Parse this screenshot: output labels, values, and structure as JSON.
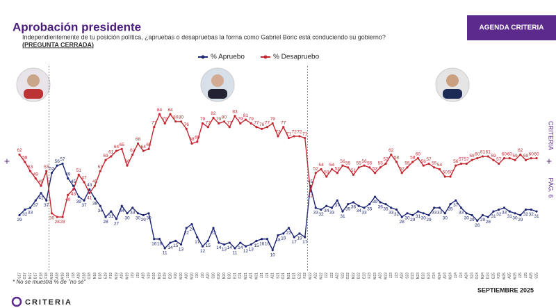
{
  "chart_data": {
    "type": "line",
    "title": "Aprobación presidente",
    "subtitle": "Independientemente de tu posición política, ¿apruebas o desapruebas la forma como Gabriel Boric está conduciendo su gobierno?",
    "subtitle_note": "(PREGUNTA CERRADA)",
    "categories": [
      "S17",
      "O17",
      "N17",
      "D17",
      "E18",
      "F18",
      "M18",
      "A18",
      "M18",
      "J18",
      "J18",
      "A18",
      "S18",
      "O18",
      "N18",
      "D18",
      "E19",
      "F19",
      "M19",
      "A19",
      "M19",
      "J19",
      "J19",
      "A19",
      "S19",
      "O19",
      "N19",
      "D19",
      "E20",
      "F20",
      "M20",
      "A20",
      "M20",
      "J20",
      "J20",
      "A20",
      "S20",
      "O20",
      "N20",
      "D20",
      "E21",
      "F21",
      "M21",
      "A21",
      "M21",
      "J21",
      "J21",
      "A21",
      "S21",
      "O21",
      "N21",
      "D21",
      "E22",
      "F22",
      "M22",
      "A22",
      "M22",
      "J22",
      "J22",
      "A22",
      "S22",
      "O22",
      "N22",
      "D22",
      "E23",
      "F23",
      "M23",
      "A23",
      "M23",
      "J23",
      "J23",
      "A23",
      "S23",
      "O23",
      "N23",
      "D23",
      "E24",
      "F24",
      "M24",
      "A24",
      "M24",
      "J24",
      "J24",
      "A24",
      "S24",
      "O24",
      "N24",
      "D24",
      "E25",
      "F25",
      "M25",
      "A25",
      "M25",
      "J25",
      "J25",
      "A25",
      "S25"
    ],
    "series": [
      {
        "name": "% Apruebo",
        "color": "#1d2675",
        "values": [
          29,
          32,
          33,
          37,
          41,
          37,
          52,
          56,
          57,
          49,
          45,
          39,
          37,
          43,
          38,
          34,
          28,
          31,
          27,
          34,
          30,
          33,
          30,
          29,
          30,
          16,
          16,
          11,
          14,
          15,
          13,
          22,
          24,
          17,
          12,
          15,
          22,
          14,
          13,
          14,
          11,
          14,
          12,
          13,
          15,
          16,
          16,
          10,
          18,
          19,
          22,
          17,
          19,
          17,
          45,
          33,
          32,
          34,
          33,
          37,
          31,
          35,
          36,
          34,
          33,
          35,
          39,
          36,
          35,
          33,
          32,
          28,
          30,
          29,
          31,
          30,
          29,
          33,
          33,
          30,
          35,
          37,
          33,
          30,
          29,
          26,
          29,
          28,
          31,
          32,
          33,
          31,
          30,
          29,
          32,
          32,
          31
        ]
      },
      {
        "name": "% Desapruebo",
        "color": "#c3262e",
        "values": [
          62,
          58,
          53,
          49,
          45,
          53,
          30,
          28,
          28,
          40,
          43,
          51,
          47,
          41,
          45,
          53,
          59,
          61,
          64,
          65,
          56,
          62,
          68,
          64,
          65,
          77,
          84,
          79,
          84,
          80,
          80,
          76,
          68,
          69,
          79,
          77,
          82,
          79,
          80,
          77,
          83,
          79,
          81,
          79,
          77,
          76,
          77,
          79,
          72,
          77,
          71,
          72,
          72,
          71,
          42,
          52,
          54,
          50,
          54,
          52,
          56,
          55,
          51,
          55,
          56,
          55,
          52,
          55,
          57,
          62,
          58,
          52,
          55,
          58,
          60,
          56,
          57,
          55,
          54,
          50,
          50,
          56,
          57,
          57,
          59,
          60,
          61,
          61,
          59,
          57,
          60,
          60,
          59,
          62,
          59,
          60,
          60
        ]
      }
    ],
    "ylim": [
      0,
      100
    ]
  },
  "button": "AGENDA CRITERIA",
  "footnote": "* No se muestra % de \"no sé\"",
  "date": "SEPTIEMBRE 2025",
  "brand": "CRITERIA",
  "side_brand": "CRITERIA",
  "page": "PÁG. 6"
}
